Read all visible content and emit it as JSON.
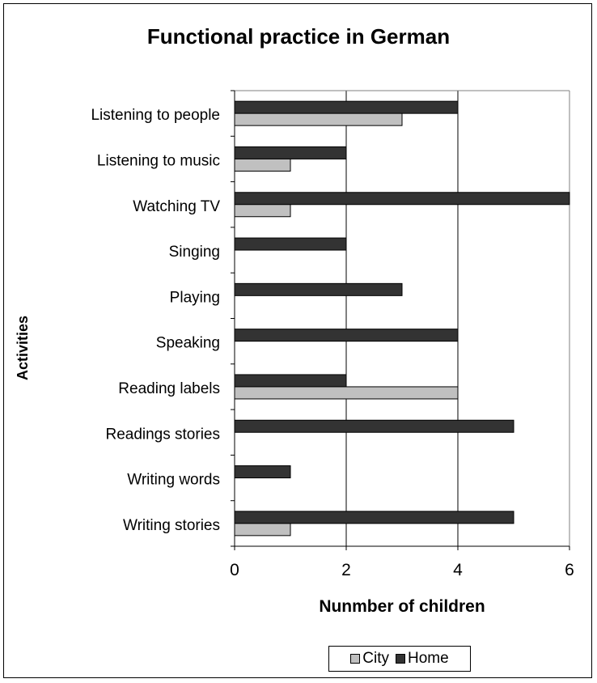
{
  "chart_data": {
    "type": "bar",
    "orientation": "horizontal",
    "title": "Functional practice in German",
    "xlabel": "Nunmber of children",
    "ylabel": "Activities",
    "xlim": [
      0,
      6
    ],
    "xticks": [
      0,
      2,
      4,
      6
    ],
    "grid": true,
    "legend_position": "bottom",
    "categories": [
      "Listening to people",
      "Listening to music",
      "Watching TV",
      "Singing",
      "Playing",
      "Speaking",
      "Reading labels",
      "Readings stories",
      "Writing words",
      "Writing stories"
    ],
    "series": [
      {
        "name": "City",
        "color": "#c0c0c0",
        "values": [
          3,
          1,
          1,
          0,
          0,
          0,
          4,
          0,
          0,
          1
        ]
      },
      {
        "name": "Home",
        "color": "#333333",
        "values": [
          4,
          2,
          6,
          2,
          3,
          4,
          2,
          5,
          1,
          5
        ]
      }
    ]
  }
}
